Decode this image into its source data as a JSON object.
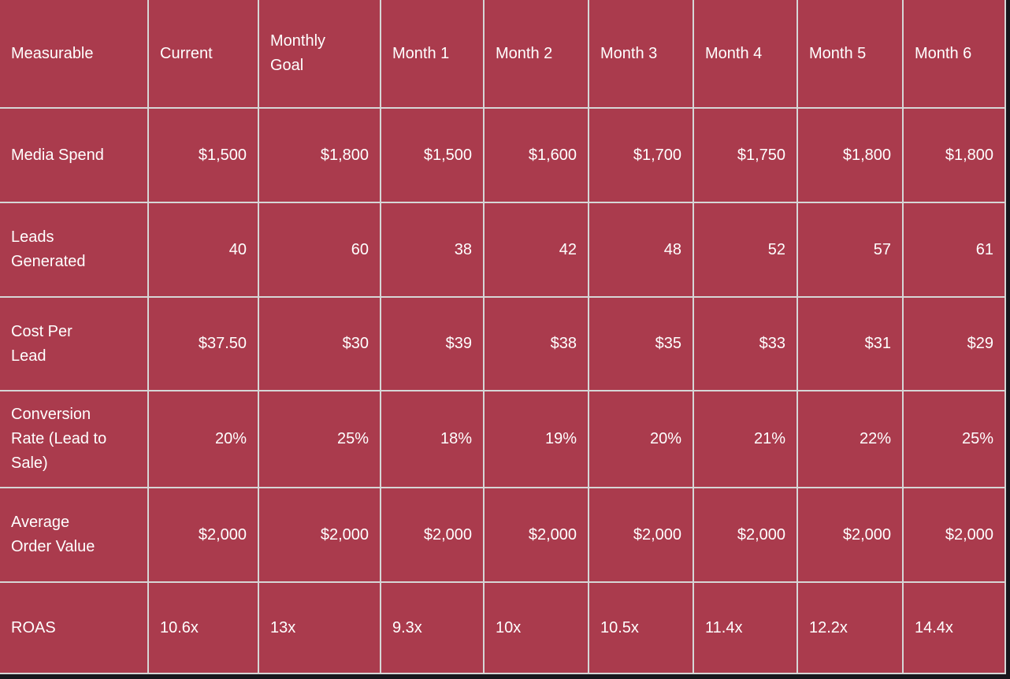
{
  "colors": {
    "cell_background": "#aa3b4d",
    "grid_line": "#d6d6d6",
    "text": "#ffffff",
    "capture_edge": "#17171d"
  },
  "chart_data": {
    "type": "table",
    "title": "",
    "columns": [
      "Measurable",
      "Current",
      "Monthly Goal",
      "Month 1",
      "Month 2",
      "Month 3",
      "Month 4",
      "Month 5",
      "Month 6"
    ],
    "rows": [
      {
        "label": "Media Spend",
        "values": [
          "$1,500",
          "$1,800",
          "$1,500",
          "$1,600",
          "$1,700",
          "$1,750",
          "$1,800",
          "$1,800"
        ]
      },
      {
        "label": "Leads Generated",
        "values": [
          "40",
          "60",
          "38",
          "42",
          "48",
          "52",
          "57",
          "61"
        ]
      },
      {
        "label": "Cost Per Lead",
        "values": [
          "$37.50",
          "$30",
          "$39",
          "$38",
          "$35",
          "$33",
          "$31",
          "$29"
        ]
      },
      {
        "label": "Conversion Rate (Lead to Sale)",
        "values": [
          "20%",
          "25%",
          "18%",
          "19%",
          "20%",
          "21%",
          "22%",
          "25%"
        ]
      },
      {
        "label": "Average Order Value",
        "values": [
          "$2,000",
          "$2,000",
          "$2,000",
          "$2,000",
          "$2,000",
          "$2,000",
          "$2,000",
          "$2,000"
        ]
      },
      {
        "label": "ROAS",
        "values": [
          "10.6x",
          "13x",
          "9.3x",
          "10x",
          "10.5x",
          "11.4x",
          "12.2x",
          "14.4x"
        ]
      }
    ]
  }
}
